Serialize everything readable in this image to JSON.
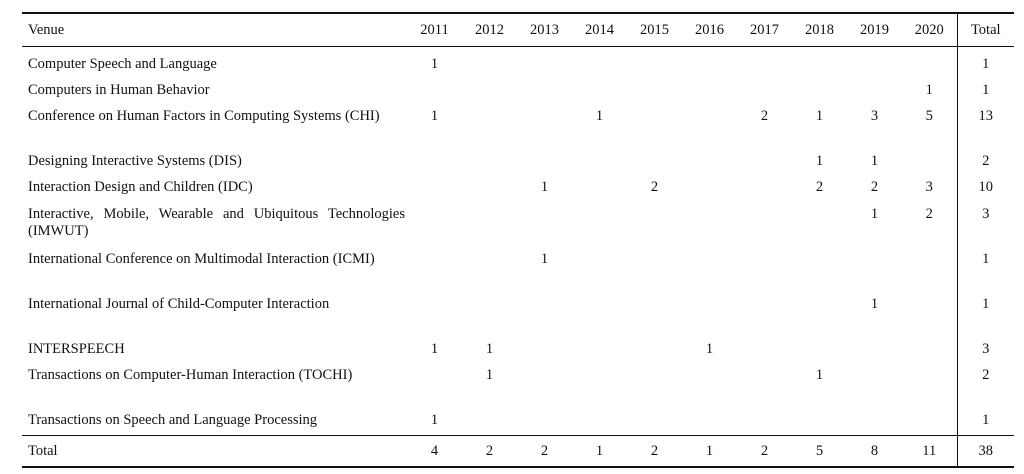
{
  "table": {
    "headers": [
      "Venue",
      "2011",
      "2012",
      "2013",
      "2014",
      "2015",
      "2016",
      "2017",
      "2018",
      "2019",
      "2020",
      "Total"
    ],
    "rows": [
      {
        "venue": "Computer Speech and Language",
        "counts": [
          "1",
          "",
          "",
          "",
          "",
          "",
          "",
          "",
          "",
          ""
        ],
        "total": "1"
      },
      {
        "venue": "Computers in Human Behavior",
        "counts": [
          "",
          "",
          "",
          "",
          "",
          "",
          "",
          "",
          "",
          "1"
        ],
        "total": "1"
      },
      {
        "venue": "Conference on Human Factors in Computing Systems (CHI)",
        "counts": [
          "1",
          "",
          "",
          "1",
          "",
          "",
          "2",
          "1",
          "3",
          "5"
        ],
        "total": "13"
      },
      {
        "venue": "Designing Interactive Systems (DIS)",
        "counts": [
          "",
          "",
          "",
          "",
          "",
          "",
          "",
          "1",
          "1",
          ""
        ],
        "total": "2"
      },
      {
        "venue": "Interaction Design and Children (IDC)",
        "counts": [
          "",
          "",
          "1",
          "",
          "2",
          "",
          "",
          "2",
          "2",
          "3"
        ],
        "total": "10"
      },
      {
        "venue": "Interactive, Mobile, Wearable and Ubiquitous Technologies (IMWUT)",
        "counts": [
          "",
          "",
          "",
          "",
          "",
          "",
          "",
          "",
          "1",
          "2"
        ],
        "total": "3"
      },
      {
        "venue": "International Conference on Multimodal Interaction (ICMI)",
        "counts": [
          "",
          "",
          "1",
          "",
          "",
          "",
          "",
          "",
          "",
          ""
        ],
        "total": "1"
      },
      {
        "venue": "International Journal of Child-Computer Interaction",
        "counts": [
          "",
          "",
          "",
          "",
          "",
          "",
          "",
          "",
          "1",
          ""
        ],
        "total": "1"
      },
      {
        "venue": "INTERSPEECH",
        "counts": [
          "1",
          "1",
          "",
          "",
          "",
          "1",
          "",
          "",
          "",
          ""
        ],
        "total": "3"
      },
      {
        "venue": "Transactions on Computer-Human Interaction (TOCHI)",
        "counts": [
          "",
          "1",
          "",
          "",
          "",
          "",
          "",
          "1",
          "",
          ""
        ],
        "total": "2"
      },
      {
        "venue": "Transactions on Speech and Language Processing",
        "counts": [
          "1",
          "",
          "",
          "",
          "",
          "",
          "",
          "",
          "",
          ""
        ],
        "total": "1"
      }
    ],
    "footer": {
      "label": "Total",
      "counts": [
        "4",
        "2",
        "2",
        "1",
        "2",
        "1",
        "2",
        "5",
        "8",
        "11"
      ],
      "total": "38"
    }
  }
}
